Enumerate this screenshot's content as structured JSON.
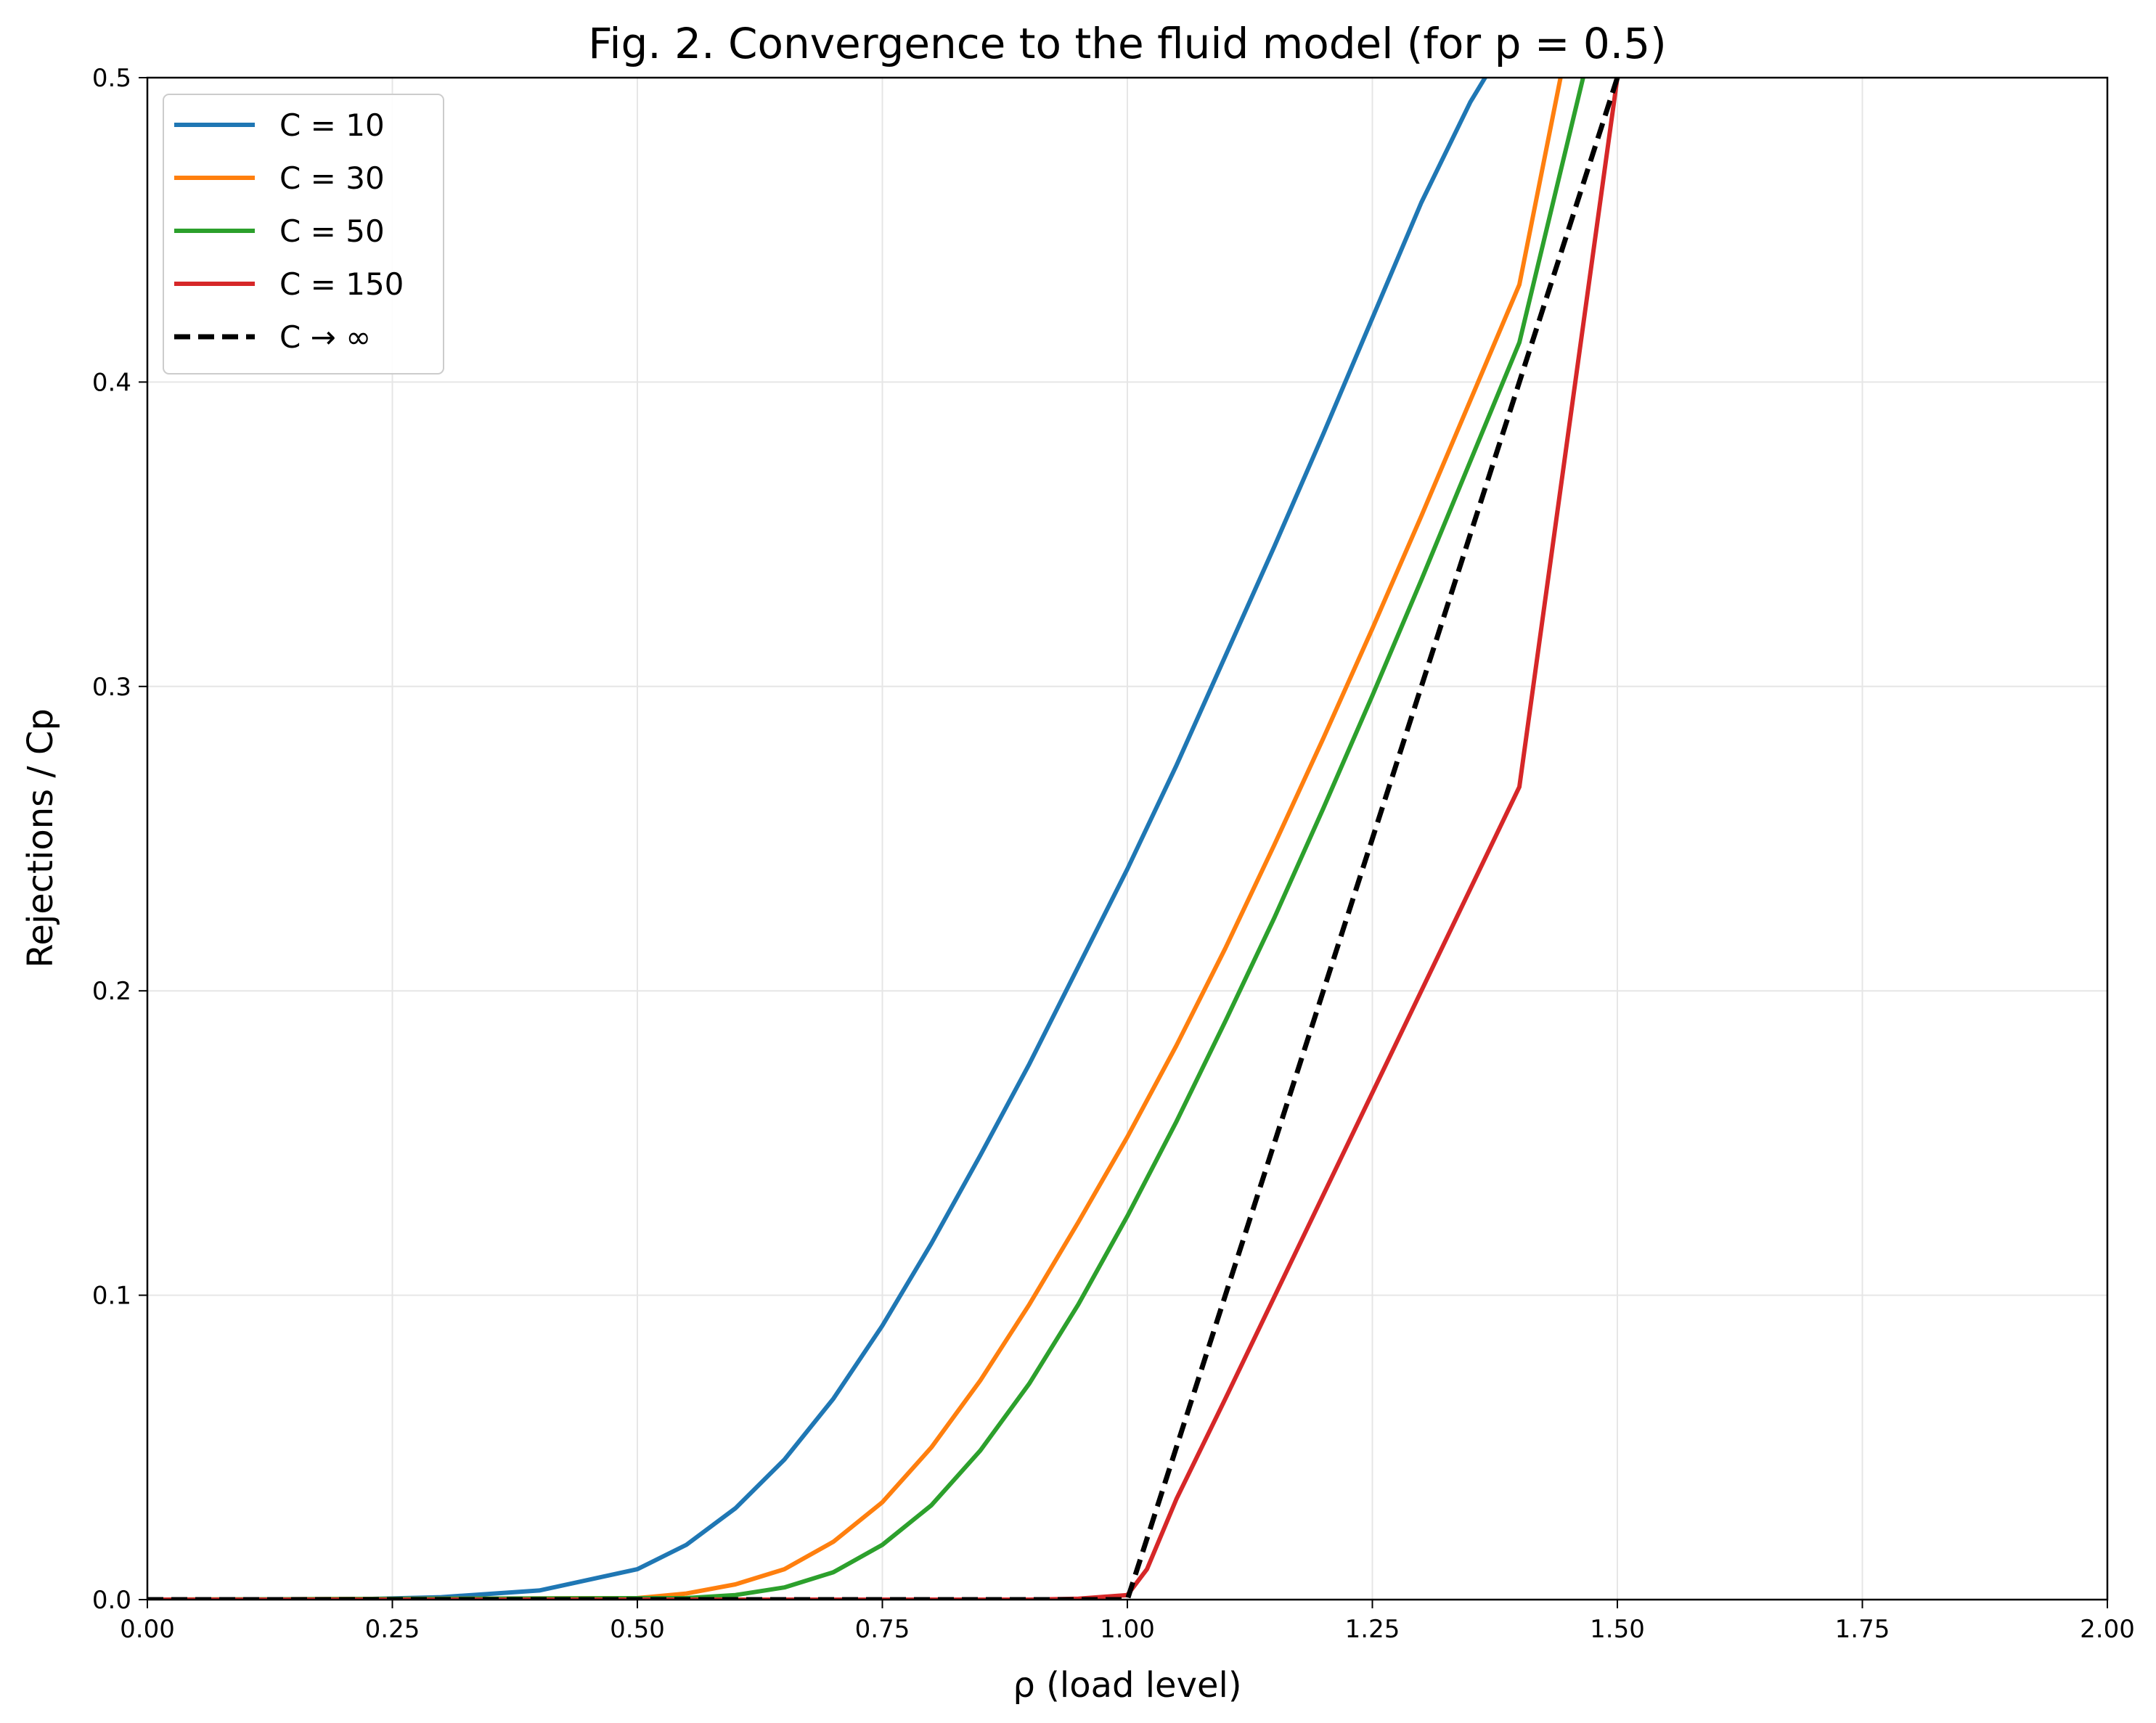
{
  "chart_data": {
    "type": "line",
    "title": "Fig. 2. Convergence to the fluid model (for p = 0.5)",
    "xlabel": "ρ (load level)",
    "ylabel": "Rejections / Cp",
    "xlim": [
      0,
      2
    ],
    "ylim": [
      0,
      0.5
    ],
    "xticks": [
      0.0,
      0.25,
      0.5,
      0.75,
      1.0,
      1.25,
      1.5,
      1.75,
      2.0
    ],
    "xtick_labels": [
      "0.00",
      "0.25",
      "0.50",
      "0.75",
      "1.00",
      "1.25",
      "1.50",
      "1.75",
      "2.00"
    ],
    "yticks": [
      0.0,
      0.1,
      0.2,
      0.3,
      0.4,
      0.5
    ],
    "ytick_labels": [
      "0.0",
      "0.1",
      "0.2",
      "0.3",
      "0.4",
      "0.5"
    ],
    "grid": true,
    "legend_position": "top-left",
    "series": [
      {
        "name": "C = 10",
        "color": "#1f77b4",
        "style": "solid",
        "x": [
          0.0,
          0.2,
          0.3,
          0.4,
          0.5,
          0.55,
          0.6,
          0.65,
          0.7,
          0.75,
          0.8,
          0.85,
          0.9,
          0.95,
          1.0,
          1.05,
          1.1,
          1.15,
          1.2,
          1.25,
          1.3,
          1.35,
          1.365
        ],
        "y": [
          0.0,
          0.0,
          0.0008,
          0.003,
          0.01,
          0.018,
          0.03,
          0.046,
          0.066,
          0.09,
          0.117,
          0.146,
          0.176,
          0.208,
          0.24,
          0.274,
          0.31,
          0.346,
          0.383,
          0.421,
          0.459,
          0.492,
          0.5
        ]
      },
      {
        "name": "C = 30",
        "color": "#ff7f0e",
        "style": "solid",
        "x": [
          0.0,
          0.5,
          0.55,
          0.6,
          0.65,
          0.7,
          0.75,
          0.8,
          0.85,
          0.9,
          0.95,
          1.0,
          1.05,
          1.1,
          1.15,
          1.2,
          1.25,
          1.3,
          1.35,
          1.4,
          1.442
        ],
        "y": [
          0.0,
          0.0005,
          0.002,
          0.005,
          0.01,
          0.019,
          0.032,
          0.05,
          0.072,
          0.097,
          0.124,
          0.152,
          0.182,
          0.214,
          0.248,
          0.283,
          0.319,
          0.356,
          0.394,
          0.432,
          0.5
        ]
      },
      {
        "name": "C = 50",
        "color": "#2ca02c",
        "style": "solid",
        "x": [
          0.0,
          0.55,
          0.6,
          0.65,
          0.7,
          0.75,
          0.8,
          0.85,
          0.9,
          0.95,
          1.0,
          1.05,
          1.1,
          1.15,
          1.2,
          1.25,
          1.3,
          1.35,
          1.4,
          1.465
        ],
        "y": [
          0.0,
          0.0005,
          0.0015,
          0.004,
          0.009,
          0.018,
          0.031,
          0.049,
          0.071,
          0.097,
          0.126,
          0.157,
          0.19,
          0.224,
          0.26,
          0.297,
          0.335,
          0.374,
          0.413,
          0.5
        ]
      },
      {
        "name": "C = 150",
        "color": "#d62728",
        "style": "solid",
        "x": [
          0.0,
          0.9,
          0.95,
          1.0,
          1.02,
          1.05,
          1.1,
          1.2,
          1.3,
          1.4,
          1.5
        ],
        "y": [
          0.0,
          0.0,
          0.0003,
          0.0015,
          0.01,
          0.033,
          0.066,
          0.133,
          0.2,
          0.267,
          0.5
        ]
      },
      {
        "name": "C → ∞",
        "color": "#000000",
        "style": "dashed",
        "x": [
          0.0,
          1.0,
          1.5
        ],
        "y": [
          0.0,
          0.0,
          0.5
        ]
      }
    ]
  }
}
